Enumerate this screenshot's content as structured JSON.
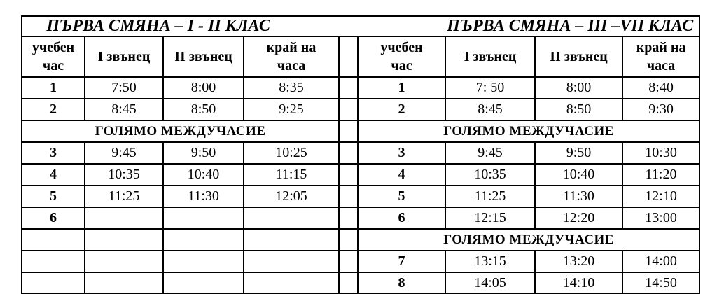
{
  "page": {
    "background_color": "#ffffff",
    "border_color": "#000000",
    "text_color": "#000000"
  },
  "left_table": {
    "title": "ПЪРВА СМЯНА – I - II КЛАС",
    "headers": [
      "учебен\nчас",
      "I звънец",
      "II звънец",
      "край на\nчаса"
    ],
    "rows": [
      {
        "type": "lesson",
        "hour": "1",
        "bell1": "7:50",
        "bell2": "8:00",
        "end": "8:35"
      },
      {
        "type": "lesson",
        "hour": "2",
        "bell1": "8:45",
        "bell2": "8:50",
        "end": "9:25"
      },
      {
        "type": "break",
        "label": "ГОЛЯМО МЕЖДУЧАСИЕ"
      },
      {
        "type": "lesson",
        "hour": "3",
        "bell1": "9:45",
        "bell2": "9:50",
        "end": "10:25"
      },
      {
        "type": "lesson",
        "hour": "4",
        "bell1": "10:35",
        "bell2": "10:40",
        "end": "11:15"
      },
      {
        "type": "lesson",
        "hour": "5",
        "bell1": "11:25",
        "bell2": "11:30",
        "end": "12:05"
      },
      {
        "type": "lesson",
        "hour": "6",
        "bell1": "",
        "bell2": "",
        "end": ""
      },
      {
        "type": "lesson",
        "hour": "",
        "bell1": "",
        "bell2": "",
        "end": ""
      },
      {
        "type": "lesson",
        "hour": "",
        "bell1": "",
        "bell2": "",
        "end": ""
      },
      {
        "type": "lesson",
        "hour": "",
        "bell1": "",
        "bell2": "",
        "end": ""
      }
    ]
  },
  "right_table": {
    "title": "ПЪРВА СМЯНА – III –VII КЛАС",
    "headers": [
      "учебен\nчас",
      "I звънец",
      "II звънец",
      "край на\nчаса"
    ],
    "rows": [
      {
        "type": "lesson",
        "hour": "1",
        "bell1": "7: 50",
        "bell2": "8:00",
        "end": "8:40"
      },
      {
        "type": "lesson",
        "hour": "2",
        "bell1": "8:45",
        "bell2": "8:50",
        "end": "9:30"
      },
      {
        "type": "break",
        "label": "ГОЛЯМО МЕЖДУЧАСИЕ"
      },
      {
        "type": "lesson",
        "hour": "3",
        "bell1": "9:45",
        "bell2": "9:50",
        "end": "10:30"
      },
      {
        "type": "lesson",
        "hour": "4",
        "bell1": "10:35",
        "bell2": "10:40",
        "end": "11:20"
      },
      {
        "type": "lesson",
        "hour": "5",
        "bell1": "11:25",
        "bell2": "11:30",
        "end": "12:10"
      },
      {
        "type": "lesson",
        "hour": "6",
        "bell1": "12:15",
        "bell2": "12:20",
        "end": "13:00"
      },
      {
        "type": "break",
        "label": "ГОЛЯМО МЕЖДУЧАСИЕ"
      },
      {
        "type": "lesson",
        "hour": "7",
        "bell1": "13:15",
        "bell2": "13:20",
        "end": "14:00"
      },
      {
        "type": "lesson",
        "hour": "8",
        "bell1": "14:05",
        "bell2": "14:10",
        "end": "14:50"
      }
    ]
  }
}
